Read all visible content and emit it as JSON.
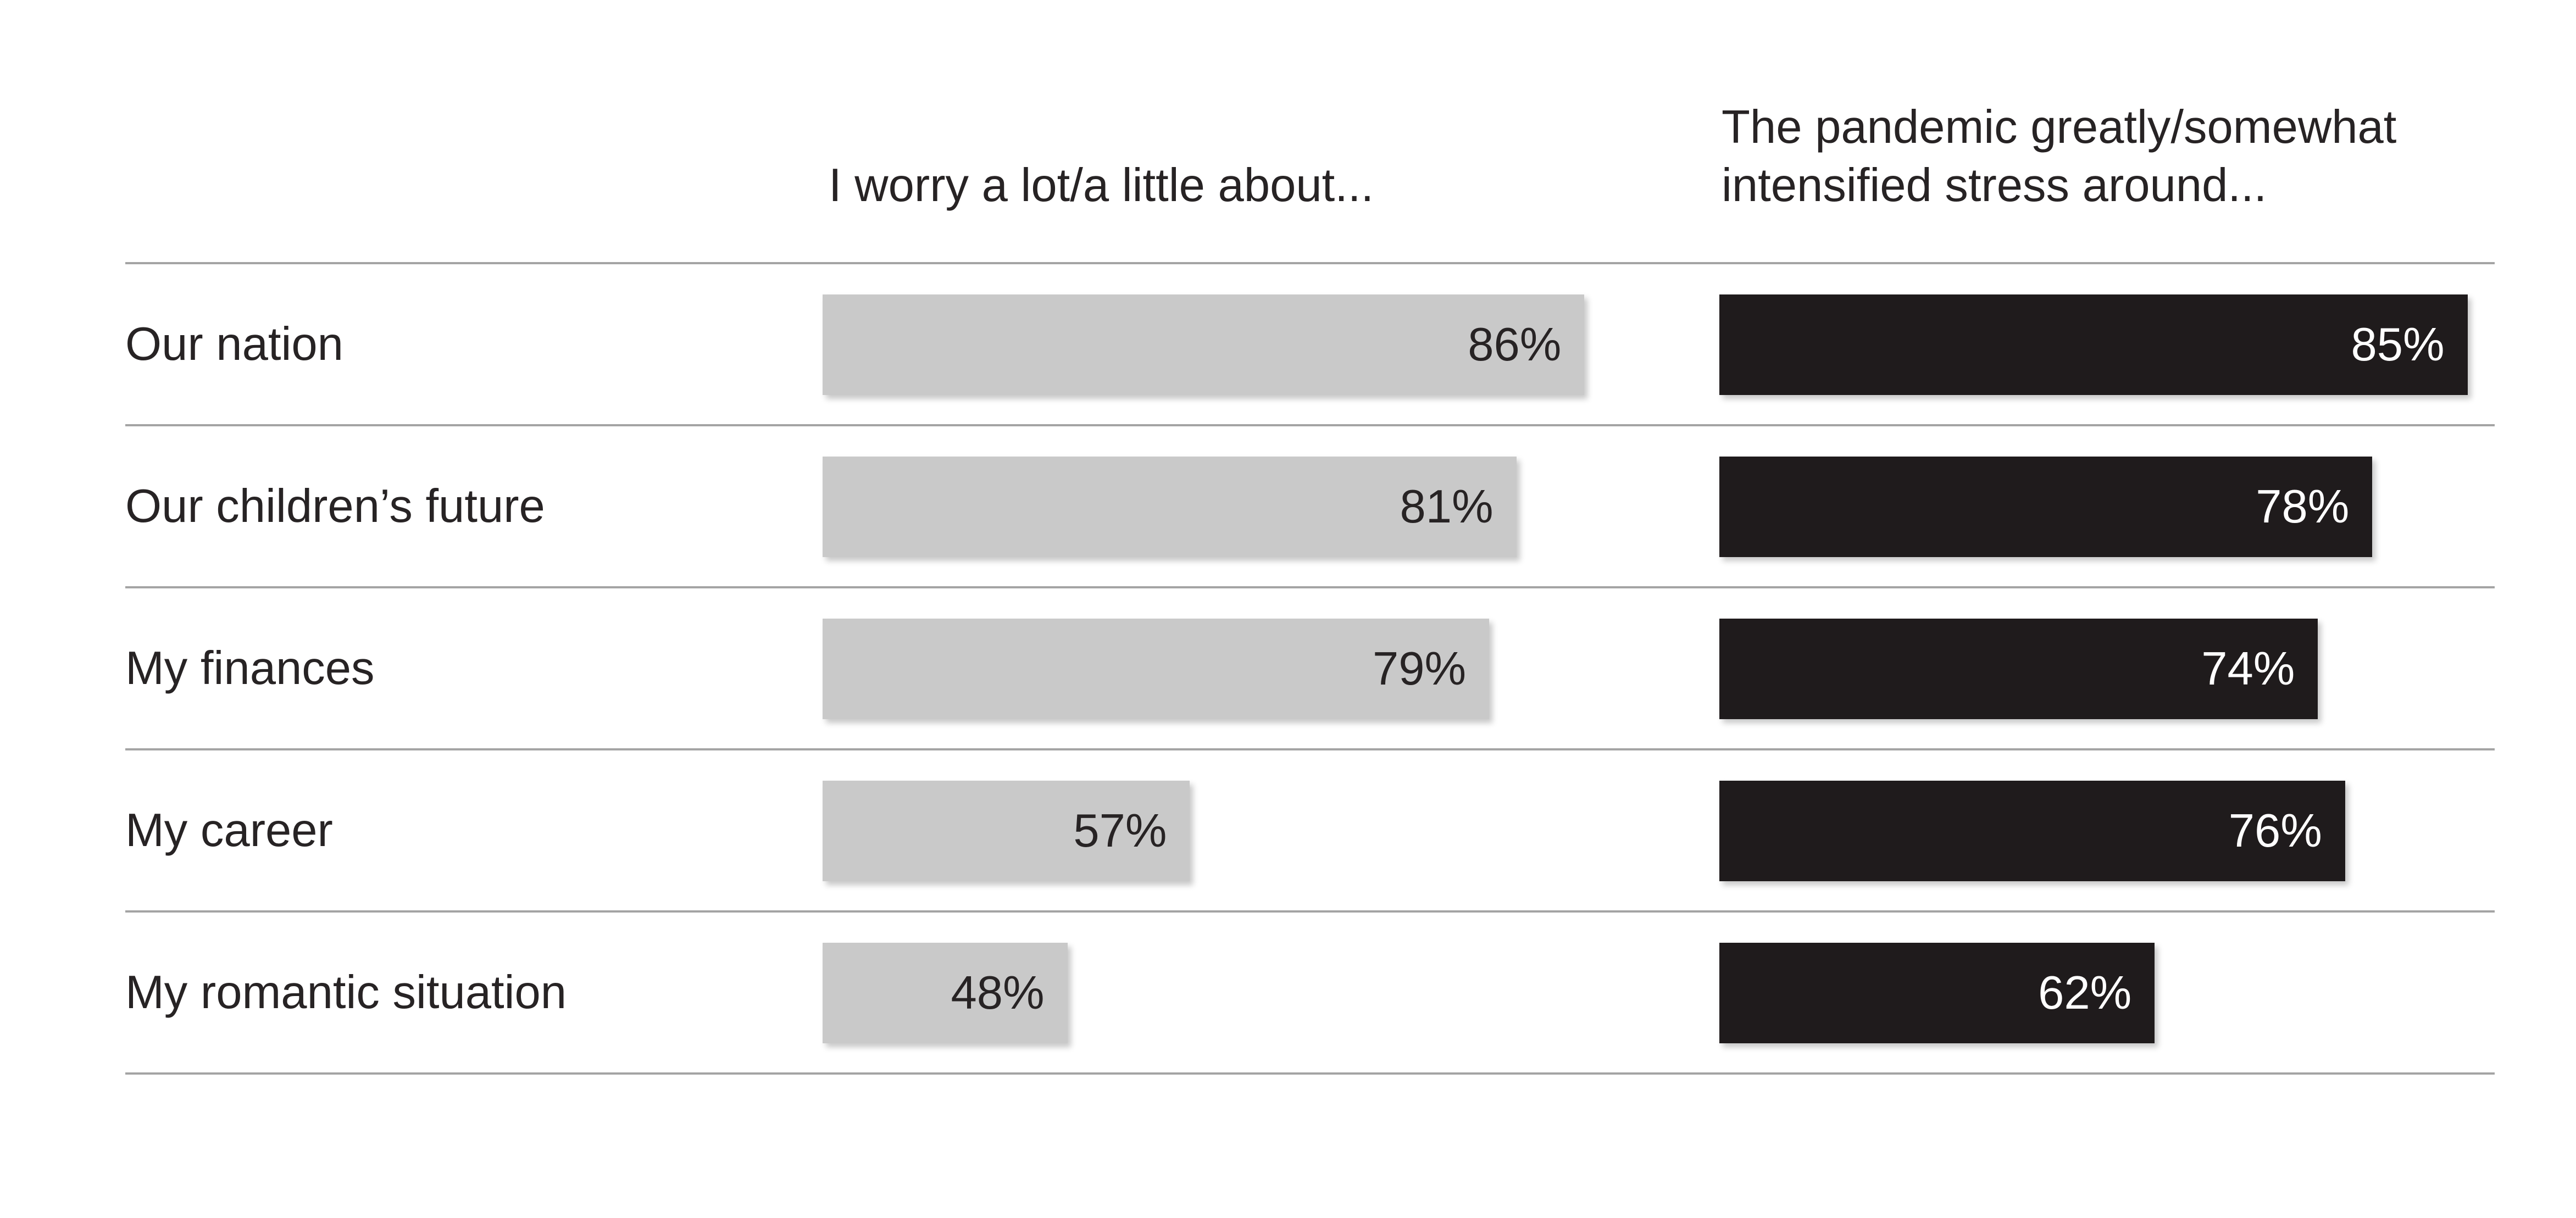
{
  "page": {
    "background": "#ffffff",
    "text_color": "#272324",
    "separator_color": "#a4a4a4"
  },
  "chart_data": {
    "type": "bar",
    "orientation": "horizontal",
    "title": "",
    "xlabel": "",
    "ylabel": "",
    "categories": [
      "Our nation",
      "Our children’s future",
      "My finances",
      "My career",
      "My romantic situation"
    ],
    "series": [
      {
        "name": "I worry a lot/a little about...",
        "name_lines": [
          "I worry a lot/a little about..."
        ],
        "values": [
          86,
          81,
          79,
          57,
          48
        ],
        "value_labels": [
          "86%",
          "81%",
          "79%",
          "57%",
          "48%"
        ],
        "bar_color": "#c9c9c9",
        "value_label_color": "#272324"
      },
      {
        "name": "The pandemic greatly/somewhat intensified stress around...",
        "name_lines": [
          "The pandemic greatly/somewhat",
          "intensified stress around..."
        ],
        "values": [
          85,
          78,
          74,
          76,
          62
        ],
        "value_labels": [
          "85%",
          "78%",
          "74%",
          "76%",
          "62%"
        ],
        "bar_color": "#1f1b1c",
        "value_label_color": "#ffffff"
      }
    ],
    "xlim": [
      30,
      100
    ],
    "grid": "horizontal row separator lines",
    "legend_position": "column headers above each bar column"
  }
}
